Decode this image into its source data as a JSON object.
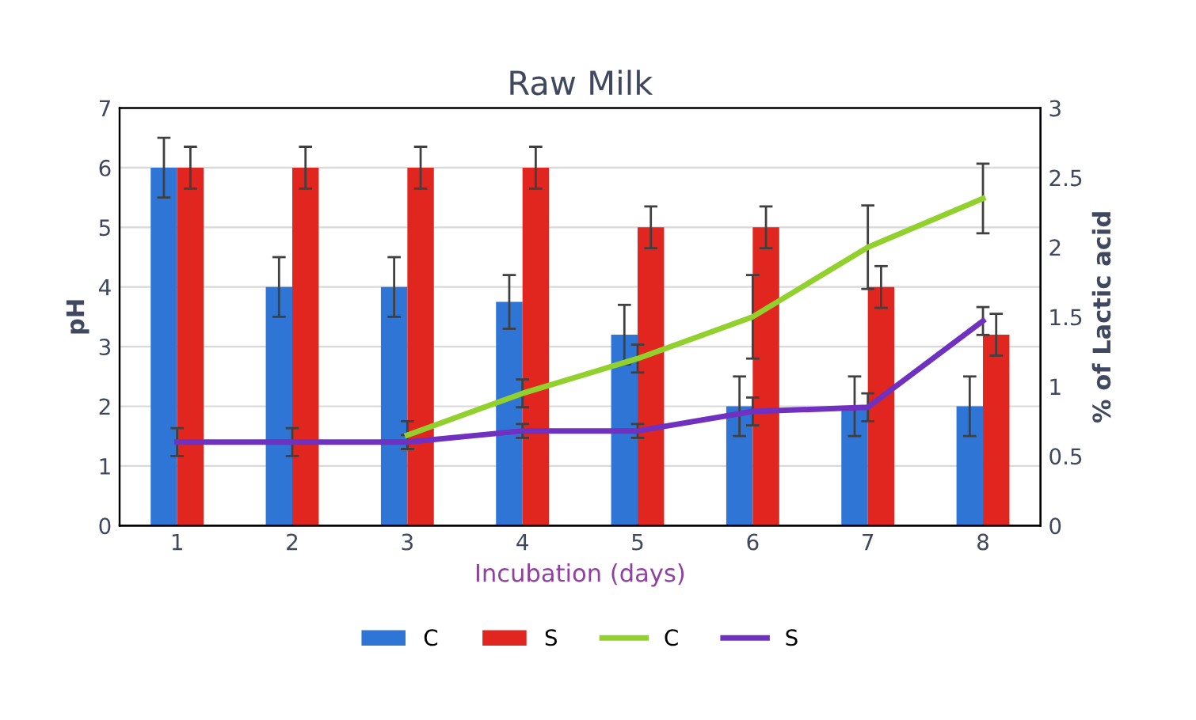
{
  "chart_data": {
    "type": "bar",
    "title": "Raw Milk",
    "xlabel": "Incubation (days)",
    "ylabel": "pH",
    "y2label": "% of Lactic acid",
    "categories": [
      "1",
      "2",
      "3",
      "4",
      "5",
      "6",
      "7",
      "8"
    ],
    "series": [
      {
        "name": "C",
        "color": "#2e75d6",
        "values": [
          6,
          4,
          4,
          3.75,
          3.2,
          2,
          2,
          2
        ],
        "errors": [
          0.5,
          0.5,
          0.5,
          0.45,
          0.5,
          0.5,
          0.5,
          0.5
        ]
      },
      {
        "name": "S",
        "color": "#e0261e",
        "values": [
          6,
          6,
          6,
          6,
          5,
          5,
          4,
          3.2
        ],
        "errors": [
          0.35,
          0.35,
          0.35,
          0.35,
          0.35,
          0.35,
          0.35,
          0.35
        ]
      },
      {
        "name": "C",
        "type": "line",
        "axis": "y2",
        "color": "#92d02e",
        "values": [
          null,
          null,
          0.65,
          0.95,
          1.2,
          1.5,
          2.0,
          2.35
        ],
        "errors": [
          null,
          null,
          0.1,
          0.1,
          0.1,
          0.3,
          0.3,
          0.25
        ]
      },
      {
        "name": "S",
        "type": "line",
        "axis": "y2",
        "color": "#7030c0",
        "values": [
          0.6,
          0.6,
          0.6,
          0.68,
          0.68,
          0.82,
          0.85,
          1.47
        ],
        "errors": [
          0.1,
          0.1,
          0.05,
          0.05,
          0.05,
          0.1,
          0.1,
          0.1
        ]
      }
    ],
    "ylim": [
      0,
      7
    ],
    "yticks": [
      0,
      1,
      2,
      3,
      4,
      5,
      6,
      7
    ],
    "y2lim": [
      0,
      3
    ],
    "y2ticks": [
      0,
      {
        "value": 0.5,
        "label": "0.5"
      },
      1,
      {
        "value": 1.5,
        "label": "1.5"
      },
      2,
      {
        "value": 2.5,
        "label": "2.5"
      },
      3
    ],
    "grid": "y",
    "legend": "bottom",
    "marker": "none",
    "line_style": "solid"
  }
}
